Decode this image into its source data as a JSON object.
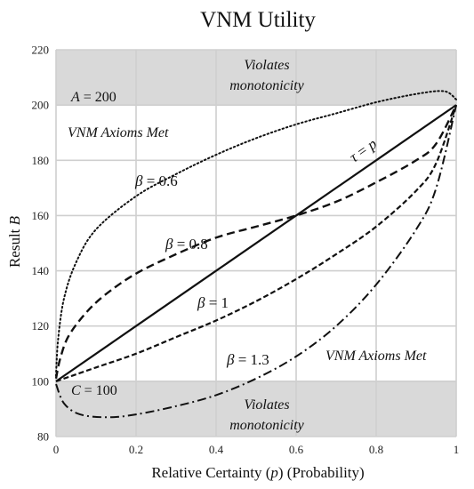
{
  "chart_data": {
    "type": "line",
    "title": "VNM Utility",
    "xlabel_parts": {
      "lead": "Relative Certainty (",
      "var": "p",
      "tail": ")  (Probability)"
    },
    "ylabel_parts": {
      "lead": "Result ",
      "var": "B"
    },
    "xlim": [
      0,
      1
    ],
    "ylim": [
      80,
      220
    ],
    "x_ticks": [
      0,
      0.2,
      0.4,
      0.6,
      0.8,
      1
    ],
    "x_tick_labels": [
      "0",
      "0.2",
      "0.4",
      "0.6",
      "0.8",
      "1"
    ],
    "y_ticks": [
      80,
      100,
      120,
      140,
      160,
      180,
      200,
      220
    ],
    "y_tick_labels": [
      "80",
      "100",
      "120",
      "140",
      "160",
      "180",
      "200",
      "220"
    ],
    "grid": true,
    "shaded_regions": [
      {
        "y_from": 200,
        "y_to": 220,
        "line1": "Violates",
        "line2": "monotonicity"
      },
      {
        "y_from": 80,
        "y_to": 100,
        "line1": "Violates",
        "line2": "monotonicity"
      }
    ],
    "bounds": {
      "A": 200,
      "C": 100
    },
    "a_label": {
      "var": "A",
      "text": " = 200"
    },
    "c_label": {
      "var": "C",
      "text": " = 100"
    },
    "axioms_met_label": "VNM Axioms Met",
    "series": [
      {
        "label_tex": {
          "var": "τ",
          "eq": " = ",
          "var2": "p"
        },
        "style": "solid",
        "points": [
          [
            0,
            100
          ],
          [
            0.2,
            120
          ],
          [
            0.4,
            140
          ],
          [
            0.6,
            160
          ],
          [
            0.8,
            180
          ],
          [
            1,
            200
          ]
        ]
      },
      {
        "label_tex": {
          "var": "β",
          "eq": " = 1"
        },
        "style": "dashed-fine",
        "points": [
          [
            0,
            100
          ],
          [
            0.1,
            105
          ],
          [
            0.2,
            110
          ],
          [
            0.3,
            116
          ],
          [
            0.4,
            122
          ],
          [
            0.5,
            129
          ],
          [
            0.6,
            137
          ],
          [
            0.7,
            146
          ],
          [
            0.8,
            156
          ],
          [
            0.9,
            169
          ],
          [
            0.95,
            179
          ],
          [
            1,
            200
          ]
        ]
      },
      {
        "label_tex": {
          "var": "β",
          "eq": " = 0.8"
        },
        "style": "dashed",
        "points": [
          [
            0,
            101
          ],
          [
            0.01,
            108
          ],
          [
            0.03,
            116
          ],
          [
            0.07,
            124
          ],
          [
            0.12,
            131
          ],
          [
            0.2,
            139
          ],
          [
            0.3,
            146
          ],
          [
            0.4,
            152
          ],
          [
            0.5,
            156
          ],
          [
            0.6,
            160
          ],
          [
            0.7,
            165
          ],
          [
            0.8,
            172
          ],
          [
            0.9,
            180
          ],
          [
            0.95,
            186
          ],
          [
            1,
            200
          ]
        ]
      },
      {
        "label_tex": {
          "var": "β",
          "eq": " = 0.6"
        },
        "style": "dotted",
        "points": [
          [
            0,
            102
          ],
          [
            0.005,
            115
          ],
          [
            0.02,
            130
          ],
          [
            0.05,
            143
          ],
          [
            0.1,
            155
          ],
          [
            0.2,
            167
          ],
          [
            0.3,
            175
          ],
          [
            0.4,
            182
          ],
          [
            0.5,
            188
          ],
          [
            0.6,
            193
          ],
          [
            0.7,
            197
          ],
          [
            0.8,
            201
          ],
          [
            0.9,
            204
          ],
          [
            0.97,
            205
          ],
          [
            1,
            202
          ]
        ]
      },
      {
        "label_tex": {
          "var": "β",
          "eq": " = 1.3"
        },
        "style": "dashdot",
        "points": [
          [
            0,
            99
          ],
          [
            0.02,
            92
          ],
          [
            0.06,
            88
          ],
          [
            0.13,
            87
          ],
          [
            0.2,
            88
          ],
          [
            0.3,
            91
          ],
          [
            0.4,
            95
          ],
          [
            0.5,
            101
          ],
          [
            0.6,
            109
          ],
          [
            0.7,
            120
          ],
          [
            0.8,
            135
          ],
          [
            0.9,
            155
          ],
          [
            0.95,
            170
          ],
          [
            1,
            200
          ]
        ]
      }
    ]
  }
}
